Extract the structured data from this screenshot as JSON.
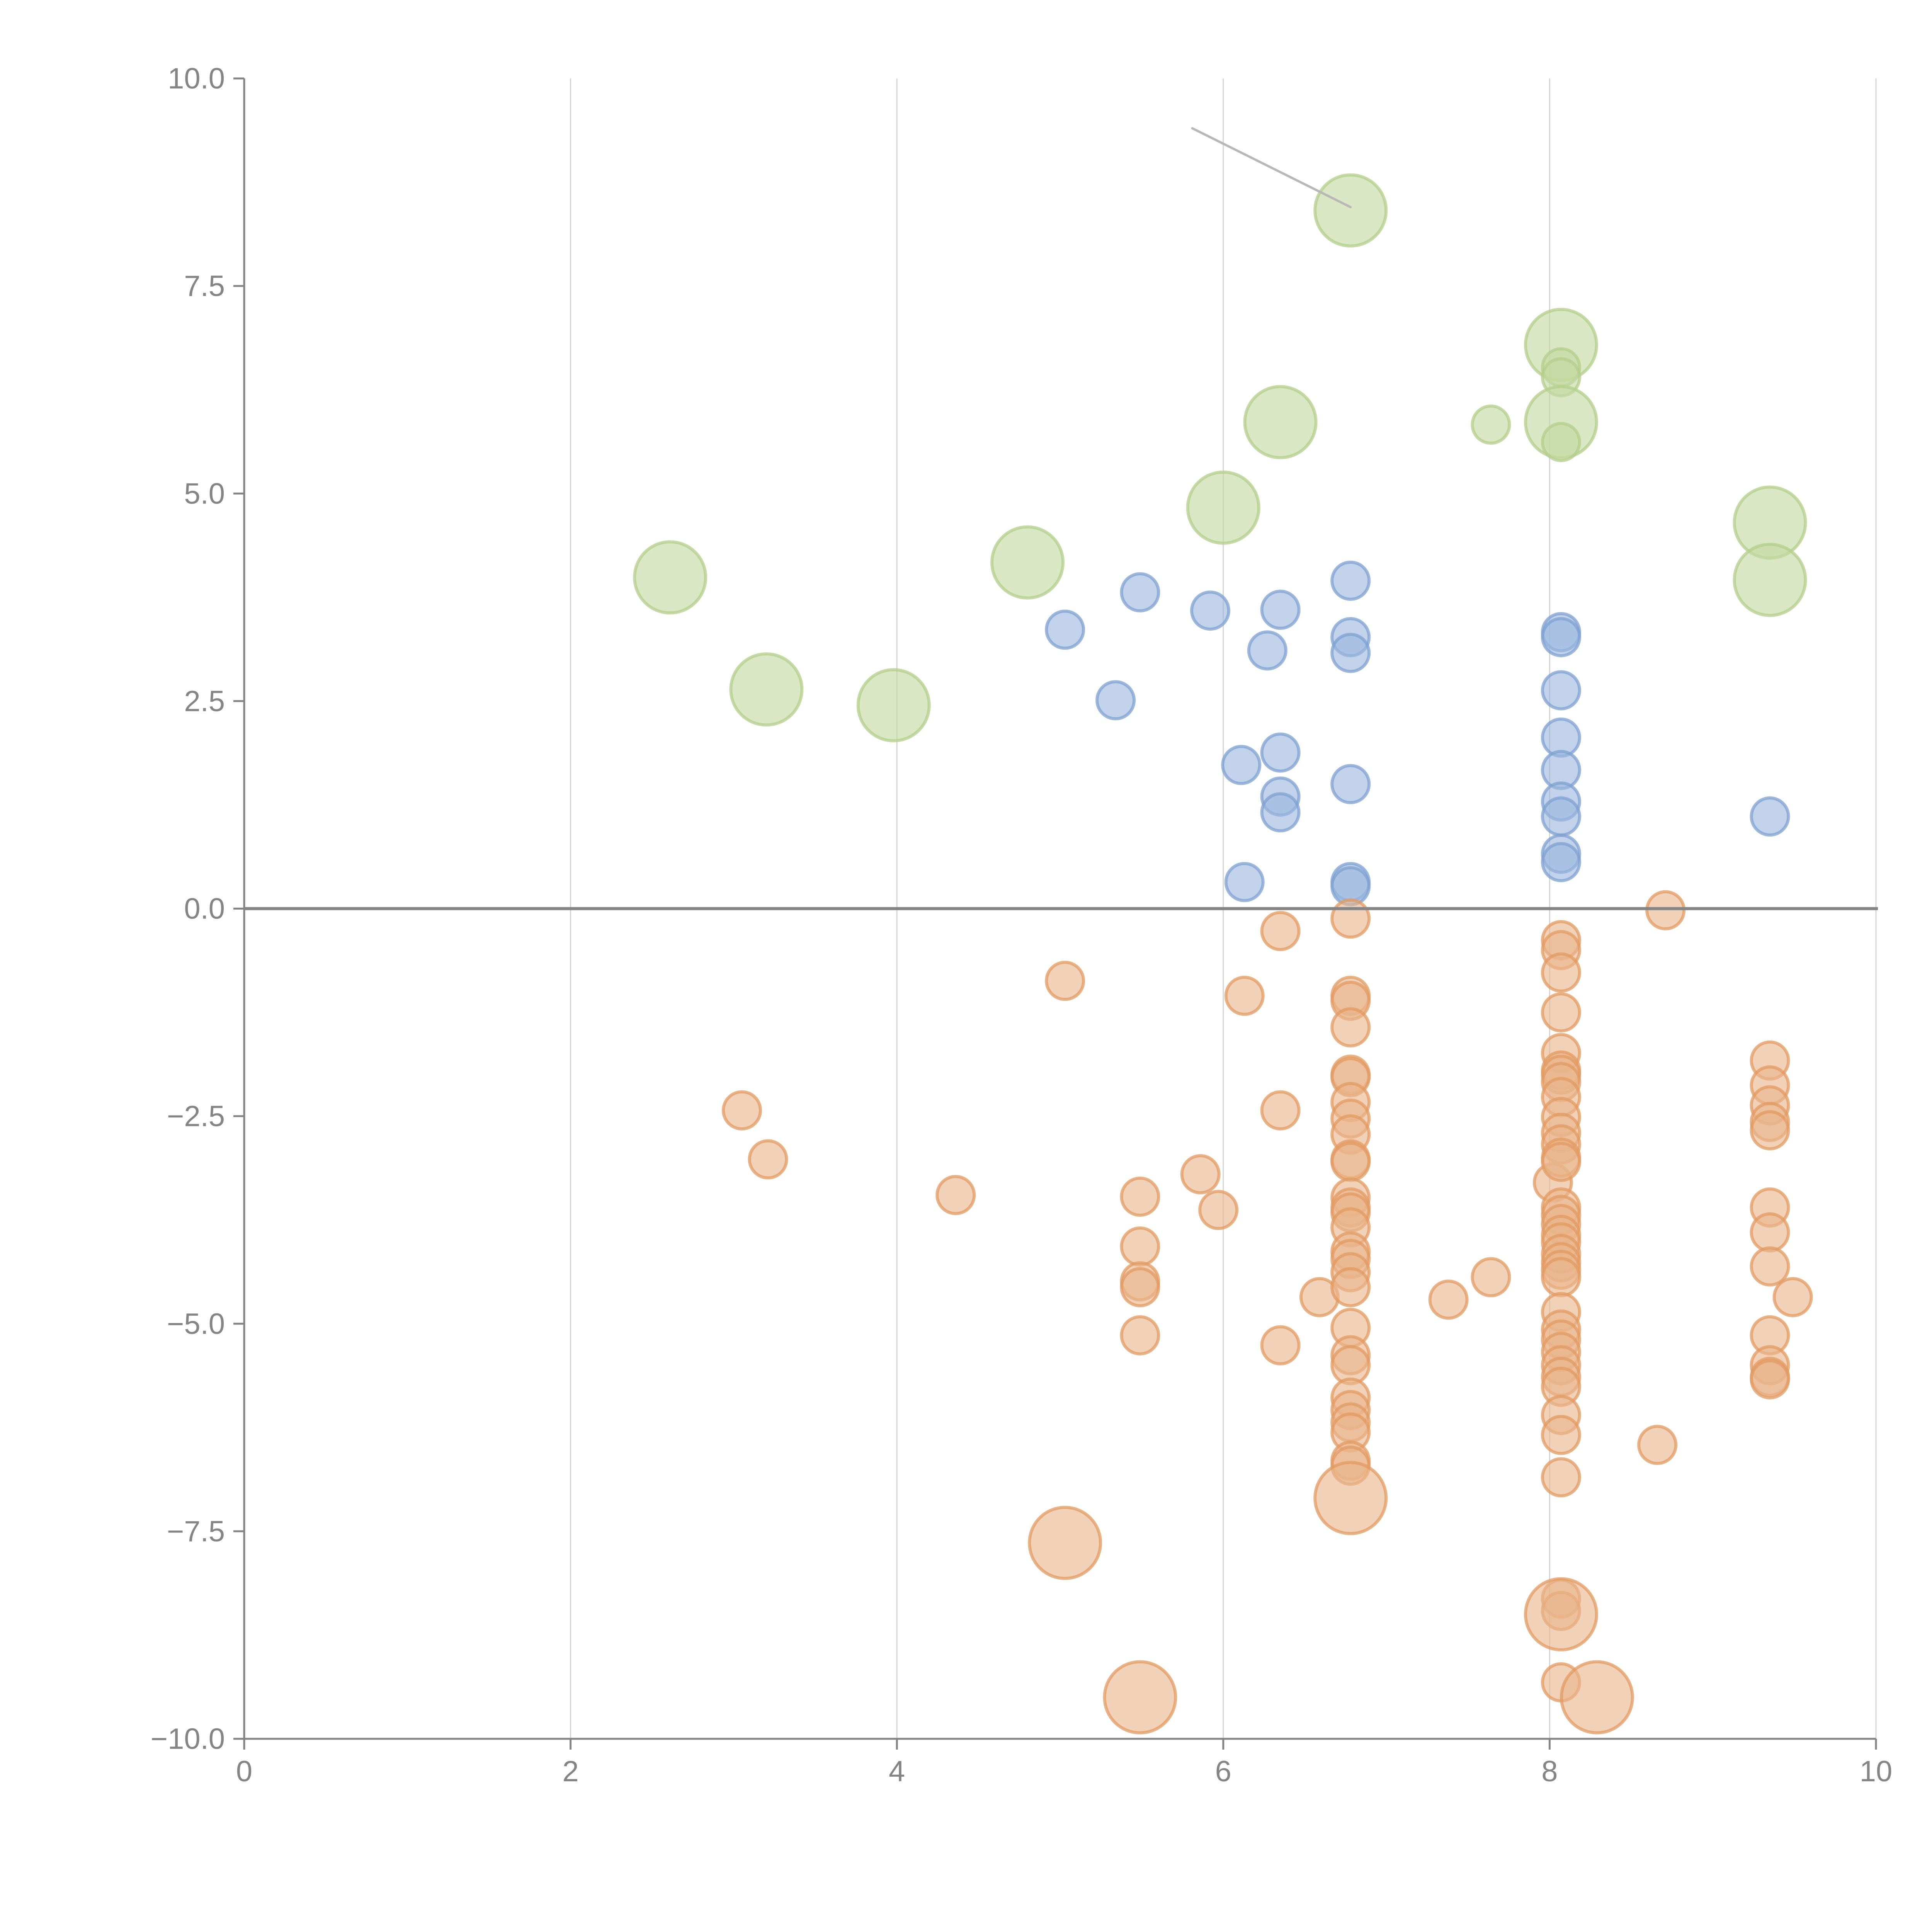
{
  "chart_data": {
    "type": "scatter",
    "title": "",
    "xlabel": "",
    "ylabel": "",
    "xlim": [
      0,
      10
    ],
    "ylim": [
      -10,
      10
    ],
    "x_ticks": [
      0,
      2,
      4,
      6,
      8,
      10
    ],
    "x_tick_labels": [
      "0",
      "2",
      "4",
      "6",
      "8",
      "10"
    ],
    "y_ticks": [
      10,
      7.5,
      5,
      2.5,
      0,
      -2.5,
      -5,
      -7.5,
      -10
    ],
    "y_tick_labels": [
      "10.0",
      "7.5",
      "5.0",
      "2.5",
      "0.0",
      "−2.5",
      "−5.0",
      "−7.5",
      "−10.0"
    ],
    "grid": "vertical",
    "zero_line": true,
    "legend": "none",
    "series": [
      {
        "name": "green",
        "color": "#c3d9a0",
        "stroke": "#b3cd8a",
        "points": [
          {
            "x": 2.61,
            "y": 3.99,
            "size": "large"
          },
          {
            "x": 3.2,
            "y": 2.64,
            "size": "large"
          },
          {
            "x": 3.98,
            "y": 2.45,
            "size": "large"
          },
          {
            "x": 4.8,
            "y": 4.17,
            "size": "large"
          },
          {
            "x": 6.0,
            "y": 4.83,
            "size": "large"
          },
          {
            "x": 6.35,
            "y": 5.86,
            "size": "large"
          },
          {
            "x": 6.78,
            "y": 8.41,
            "size": "large"
          },
          {
            "x": 7.64,
            "y": 5.83,
            "size": "small"
          },
          {
            "x": 8.07,
            "y": 6.79,
            "size": "large"
          },
          {
            "x": 8.07,
            "y": 6.52,
            "size": "small"
          },
          {
            "x": 8.07,
            "y": 6.4,
            "size": "small"
          },
          {
            "x": 8.07,
            "y": 5.86,
            "size": "large"
          },
          {
            "x": 8.07,
            "y": 5.62,
            "size": "small"
          },
          {
            "x": 9.35,
            "y": 4.65,
            "size": "large"
          },
          {
            "x": 9.35,
            "y": 3.96,
            "size": "large"
          }
        ]
      },
      {
        "name": "blue",
        "color": "#9bb7dd",
        "stroke": "#7ea0d0",
        "points": [
          {
            "x": 5.03,
            "y": 3.36,
            "size": "small"
          },
          {
            "x": 5.49,
            "y": 3.81,
            "size": "small"
          },
          {
            "x": 5.34,
            "y": 2.51,
            "size": "small"
          },
          {
            "x": 5.92,
            "y": 3.59,
            "size": "small"
          },
          {
            "x": 6.27,
            "y": 3.11,
            "size": "small"
          },
          {
            "x": 6.35,
            "y": 3.6,
            "size": "small"
          },
          {
            "x": 6.11,
            "y": 1.73,
            "size": "small"
          },
          {
            "x": 6.35,
            "y": 1.88,
            "size": "small"
          },
          {
            "x": 6.35,
            "y": 1.35,
            "size": "small"
          },
          {
            "x": 6.35,
            "y": 1.16,
            "size": "small"
          },
          {
            "x": 6.13,
            "y": 0.32,
            "size": "small"
          },
          {
            "x": 6.78,
            "y": 3.95,
            "size": "small"
          },
          {
            "x": 6.78,
            "y": 3.27,
            "size": "small"
          },
          {
            "x": 6.78,
            "y": 3.08,
            "size": "small"
          },
          {
            "x": 6.78,
            "y": 1.5,
            "size": "small"
          },
          {
            "x": 6.78,
            "y": 0.32,
            "size": "small"
          },
          {
            "x": 6.78,
            "y": 0.27,
            "size": "small"
          },
          {
            "x": 8.07,
            "y": 3.33,
            "size": "small"
          },
          {
            "x": 8.07,
            "y": 3.27,
            "size": "small"
          },
          {
            "x": 8.07,
            "y": 2.63,
            "size": "small"
          },
          {
            "x": 8.07,
            "y": 2.06,
            "size": "small"
          },
          {
            "x": 8.07,
            "y": 1.67,
            "size": "small"
          },
          {
            "x": 8.07,
            "y": 1.29,
            "size": "small"
          },
          {
            "x": 8.07,
            "y": 1.11,
            "size": "small"
          },
          {
            "x": 8.07,
            "y": 0.66,
            "size": "small"
          },
          {
            "x": 8.07,
            "y": 0.56,
            "size": "small"
          },
          {
            "x": 9.35,
            "y": 1.11,
            "size": "small"
          }
        ]
      },
      {
        "name": "orange",
        "color": "#e8b58a",
        "stroke": "#e29a60",
        "points": [
          {
            "x": 3.05,
            "y": -2.43,
            "size": "small"
          },
          {
            "x": 3.21,
            "y": -3.02,
            "size": "small"
          },
          {
            "x": 4.36,
            "y": -3.45,
            "size": "small"
          },
          {
            "x": 5.03,
            "y": -0.87,
            "size": "small"
          },
          {
            "x": 5.03,
            "y": -7.64,
            "size": "large"
          },
          {
            "x": 5.49,
            "y": -3.47,
            "size": "small"
          },
          {
            "x": 5.49,
            "y": -4.07,
            "size": "small"
          },
          {
            "x": 5.49,
            "y": -4.49,
            "size": "small"
          },
          {
            "x": 5.49,
            "y": -4.56,
            "size": "small"
          },
          {
            "x": 5.49,
            "y": -5.14,
            "size": "small"
          },
          {
            "x": 5.49,
            "y": -9.5,
            "size": "large"
          },
          {
            "x": 5.86,
            "y": -3.2,
            "size": "small"
          },
          {
            "x": 5.97,
            "y": -3.63,
            "size": "small"
          },
          {
            "x": 6.13,
            "y": -1.05,
            "size": "small"
          },
          {
            "x": 6.35,
            "y": -0.27,
            "size": "small"
          },
          {
            "x": 6.35,
            "y": -2.43,
            "size": "small"
          },
          {
            "x": 6.35,
            "y": -5.26,
            "size": "small"
          },
          {
            "x": 6.59,
            "y": -4.68,
            "size": "small"
          },
          {
            "x": 6.78,
            "y": -0.12,
            "size": "small"
          },
          {
            "x": 6.78,
            "y": -1.05,
            "size": "small"
          },
          {
            "x": 6.78,
            "y": -1.11,
            "size": "small"
          },
          {
            "x": 6.78,
            "y": -1.43,
            "size": "small"
          },
          {
            "x": 6.78,
            "y": -2.0,
            "size": "small"
          },
          {
            "x": 6.78,
            "y": -2.03,
            "size": "small"
          },
          {
            "x": 6.78,
            "y": -2.33,
            "size": "small"
          },
          {
            "x": 6.78,
            "y": -2.53,
            "size": "small"
          },
          {
            "x": 6.78,
            "y": -2.72,
            "size": "small"
          },
          {
            "x": 6.78,
            "y": -3.02,
            "size": "small"
          },
          {
            "x": 6.78,
            "y": -3.05,
            "size": "small"
          },
          {
            "x": 6.78,
            "y": -3.48,
            "size": "small"
          },
          {
            "x": 6.78,
            "y": -3.6,
            "size": "small"
          },
          {
            "x": 6.78,
            "y": -3.66,
            "size": "small"
          },
          {
            "x": 6.78,
            "y": -3.84,
            "size": "small"
          },
          {
            "x": 6.78,
            "y": -4.13,
            "size": "small"
          },
          {
            "x": 6.78,
            "y": -4.22,
            "size": "small"
          },
          {
            "x": 6.78,
            "y": -4.38,
            "size": "small"
          },
          {
            "x": 6.78,
            "y": -4.56,
            "size": "small"
          },
          {
            "x": 6.78,
            "y": -5.05,
            "size": "small"
          },
          {
            "x": 6.78,
            "y": -5.38,
            "size": "small"
          },
          {
            "x": 6.78,
            "y": -5.5,
            "size": "small"
          },
          {
            "x": 6.78,
            "y": -5.89,
            "size": "small"
          },
          {
            "x": 6.78,
            "y": -6.04,
            "size": "small"
          },
          {
            "x": 6.78,
            "y": -6.19,
            "size": "small"
          },
          {
            "x": 6.78,
            "y": -6.31,
            "size": "small"
          },
          {
            "x": 6.78,
            "y": -6.65,
            "size": "small"
          },
          {
            "x": 6.78,
            "y": -6.71,
            "size": "small"
          },
          {
            "x": 6.78,
            "y": -7.1,
            "size": "large"
          },
          {
            "x": 7.38,
            "y": -4.71,
            "size": "small"
          },
          {
            "x": 7.64,
            "y": -4.44,
            "size": "small"
          },
          {
            "x": 8.02,
            "y": -3.3,
            "size": "small"
          },
          {
            "x": 8.07,
            "y": -0.38,
            "size": "small"
          },
          {
            "x": 8.07,
            "y": -0.5,
            "size": "small"
          },
          {
            "x": 8.07,
            "y": -0.77,
            "size": "small"
          },
          {
            "x": 8.07,
            "y": -1.25,
            "size": "small"
          },
          {
            "x": 8.07,
            "y": -1.74,
            "size": "small"
          },
          {
            "x": 8.07,
            "y": -1.95,
            "size": "small"
          },
          {
            "x": 8.07,
            "y": -2.0,
            "size": "small"
          },
          {
            "x": 8.07,
            "y": -2.09,
            "size": "small"
          },
          {
            "x": 8.07,
            "y": -2.27,
            "size": "small"
          },
          {
            "x": 8.07,
            "y": -2.51,
            "size": "small"
          },
          {
            "x": 8.07,
            "y": -2.7,
            "size": "small"
          },
          {
            "x": 8.07,
            "y": -2.84,
            "size": "small"
          },
          {
            "x": 8.07,
            "y": -3.0,
            "size": "small"
          },
          {
            "x": 8.07,
            "y": -3.05,
            "size": "small"
          },
          {
            "x": 8.07,
            "y": -3.6,
            "size": "small"
          },
          {
            "x": 8.07,
            "y": -3.69,
            "size": "small"
          },
          {
            "x": 8.07,
            "y": -3.8,
            "size": "small"
          },
          {
            "x": 8.07,
            "y": -3.93,
            "size": "small"
          },
          {
            "x": 8.07,
            "y": -4.02,
            "size": "small"
          },
          {
            "x": 8.07,
            "y": -4.16,
            "size": "small"
          },
          {
            "x": 8.07,
            "y": -4.26,
            "size": "small"
          },
          {
            "x": 8.07,
            "y": -4.35,
            "size": "small"
          },
          {
            "x": 8.07,
            "y": -4.44,
            "size": "small"
          },
          {
            "x": 8.07,
            "y": -4.86,
            "size": "small"
          },
          {
            "x": 8.07,
            "y": -5.07,
            "size": "small"
          },
          {
            "x": 8.07,
            "y": -5.19,
            "size": "small"
          },
          {
            "x": 8.07,
            "y": -5.34,
            "size": "small"
          },
          {
            "x": 8.07,
            "y": -5.5,
            "size": "small"
          },
          {
            "x": 8.07,
            "y": -5.64,
            "size": "small"
          },
          {
            "x": 8.07,
            "y": -5.76,
            "size": "small"
          },
          {
            "x": 8.07,
            "y": -6.1,
            "size": "small"
          },
          {
            "x": 8.07,
            "y": -6.34,
            "size": "small"
          },
          {
            "x": 8.07,
            "y": -6.85,
            "size": "small"
          },
          {
            "x": 8.07,
            "y": -8.31,
            "size": "small"
          },
          {
            "x": 8.07,
            "y": -8.46,
            "size": "small"
          },
          {
            "x": 8.07,
            "y": -8.5,
            "size": "large"
          },
          {
            "x": 8.07,
            "y": -9.32,
            "size": "small"
          },
          {
            "x": 8.29,
            "y": -9.5,
            "size": "large"
          },
          {
            "x": 8.66,
            "y": -6.46,
            "size": "small"
          },
          {
            "x": 8.71,
            "y": -0.02,
            "size": "small"
          },
          {
            "x": 9.35,
            "y": -1.83,
            "size": "small"
          },
          {
            "x": 9.35,
            "y": -2.13,
            "size": "small"
          },
          {
            "x": 9.35,
            "y": -2.37,
            "size": "small"
          },
          {
            "x": 9.35,
            "y": -2.57,
            "size": "small"
          },
          {
            "x": 9.35,
            "y": -2.67,
            "size": "small"
          },
          {
            "x": 9.35,
            "y": -3.6,
            "size": "small"
          },
          {
            "x": 9.35,
            "y": -3.9,
            "size": "small"
          },
          {
            "x": 9.35,
            "y": -4.31,
            "size": "small"
          },
          {
            "x": 9.35,
            "y": -5.14,
            "size": "small"
          },
          {
            "x": 9.35,
            "y": -5.5,
            "size": "small"
          },
          {
            "x": 9.35,
            "y": -5.64,
            "size": "small"
          },
          {
            "x": 9.35,
            "y": -5.67,
            "size": "small"
          },
          {
            "x": 9.49,
            "y": -4.68,
            "size": "small"
          }
        ]
      }
    ],
    "annotations": [
      {
        "type": "leader-line",
        "from": {
          "x": 5.81,
          "y": 9.4
        },
        "to": {
          "x": 6.78,
          "y": 8.45
        },
        "color": "#b8b8b8"
      }
    ]
  }
}
